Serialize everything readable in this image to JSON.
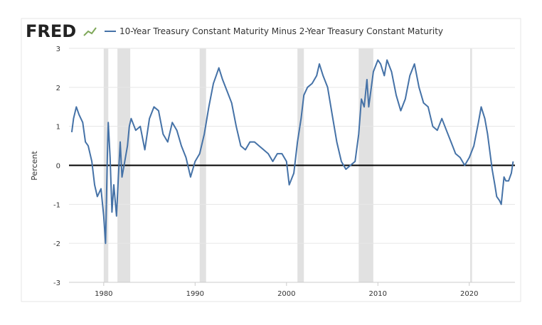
{
  "chart_data": {
    "type": "line",
    "logo": "FRED",
    "title": "10-Year Treasury Constant Maturity Minus 2-Year Treasury Constant Maturity",
    "y_label": "Percent",
    "series": [
      {
        "name": "10-Year Treasury Constant Maturity Minus 2-Year Treasury Constant Maturity",
        "color": "#4572a7",
        "x": [
          1976.5,
          1976.7,
          1977.0,
          1977.3,
          1977.7,
          1978.0,
          1978.3,
          1978.7,
          1979.0,
          1979.3,
          1979.7,
          1980.0,
          1980.2,
          1980.4,
          1980.5,
          1980.7,
          1980.9,
          1981.1,
          1981.4,
          1981.6,
          1981.8,
          1982.0,
          1982.3,
          1982.6,
          1982.8,
          1983.0,
          1983.5,
          1984.0,
          1984.5,
          1985.0,
          1985.5,
          1986.0,
          1986.5,
          1987.0,
          1987.5,
          1988.0,
          1988.5,
          1989.0,
          1989.5,
          1990.0,
          1990.5,
          1991.0,
          1991.5,
          1992.0,
          1992.3,
          1992.6,
          1993.0,
          1993.5,
          1994.0,
          1994.5,
          1995.0,
          1995.5,
          1996.0,
          1996.5,
          1997.0,
          1997.5,
          1998.0,
          1998.5,
          1999.0,
          1999.5,
          2000.0,
          2000.3,
          2000.8,
          2001.2,
          2001.6,
          2001.9,
          2002.3,
          2002.8,
          2003.3,
          2003.6,
          2004.0,
          2004.5,
          2005.0,
          2005.5,
          2006.0,
          2006.5,
          2007.0,
          2007.5,
          2007.9,
          2008.2,
          2008.5,
          2008.8,
          2009.0,
          2009.5,
          2010.0,
          2010.3,
          2010.7,
          2011.0,
          2011.5,
          2012.0,
          2012.5,
          2013.0,
          2013.5,
          2014.0,
          2014.5,
          2015.0,
          2015.5,
          2016.0,
          2016.5,
          2017.0,
          2017.5,
          2018.0,
          2018.5,
          2019.0,
          2019.5,
          2020.0,
          2020.5,
          2021.0,
          2021.3,
          2021.7,
          2022.0,
          2022.5,
          2022.8,
          2023.0,
          2023.3,
          2023.5,
          2023.8,
          2024.0,
          2024.3,
          2024.6,
          2024.8
        ],
        "values": [
          0.85,
          1.2,
          1.5,
          1.3,
          1.1,
          0.6,
          0.5,
          0.1,
          -0.5,
          -0.8,
          -0.6,
          -1.3,
          -2.0,
          0.3,
          1.1,
          0.2,
          -1.2,
          -0.5,
          -1.3,
          -0.3,
          0.6,
          -0.3,
          0.1,
          0.5,
          1.0,
          1.2,
          0.9,
          1.0,
          0.4,
          1.2,
          1.5,
          1.4,
          0.8,
          0.6,
          1.1,
          0.9,
          0.5,
          0.2,
          -0.3,
          0.1,
          0.3,
          0.8,
          1.5,
          2.1,
          2.3,
          2.5,
          2.2,
          1.9,
          1.6,
          1.0,
          0.5,
          0.4,
          0.6,
          0.6,
          0.5,
          0.4,
          0.3,
          0.1,
          0.3,
          0.3,
          0.1,
          -0.5,
          -0.2,
          0.6,
          1.2,
          1.8,
          2.0,
          2.1,
          2.3,
          2.6,
          2.3,
          2.0,
          1.3,
          0.6,
          0.1,
          -0.1,
          0.0,
          0.1,
          0.8,
          1.7,
          1.5,
          2.2,
          1.5,
          2.4,
          2.7,
          2.6,
          2.3,
          2.7,
          2.4,
          1.8,
          1.4,
          1.7,
          2.3,
          2.6,
          2.0,
          1.6,
          1.5,
          1.0,
          0.9,
          1.2,
          0.9,
          0.6,
          0.3,
          0.2,
          0.0,
          0.2,
          0.5,
          1.1,
          1.5,
          1.2,
          0.8,
          -0.1,
          -0.5,
          -0.8,
          -0.9,
          -1.0,
          -0.3,
          -0.4,
          -0.4,
          -0.2,
          0.1
        ]
      }
    ],
    "recessions": [
      [
        1980.0,
        1980.5
      ],
      [
        1981.5,
        1982.9
      ],
      [
        1990.5,
        1991.2
      ],
      [
        2001.2,
        2001.9
      ],
      [
        2007.9,
        2009.5
      ],
      [
        2020.1,
        2020.3
      ]
    ],
    "reference_line": 0,
    "xlim": [
      1976.2,
      2025.0
    ],
    "xticks": [
      1980,
      1990,
      2000,
      2010,
      2020
    ],
    "ylim": [
      -3,
      3
    ],
    "yticks": [
      -3,
      -2,
      -1,
      0,
      1,
      2,
      3
    ],
    "grid": true
  }
}
